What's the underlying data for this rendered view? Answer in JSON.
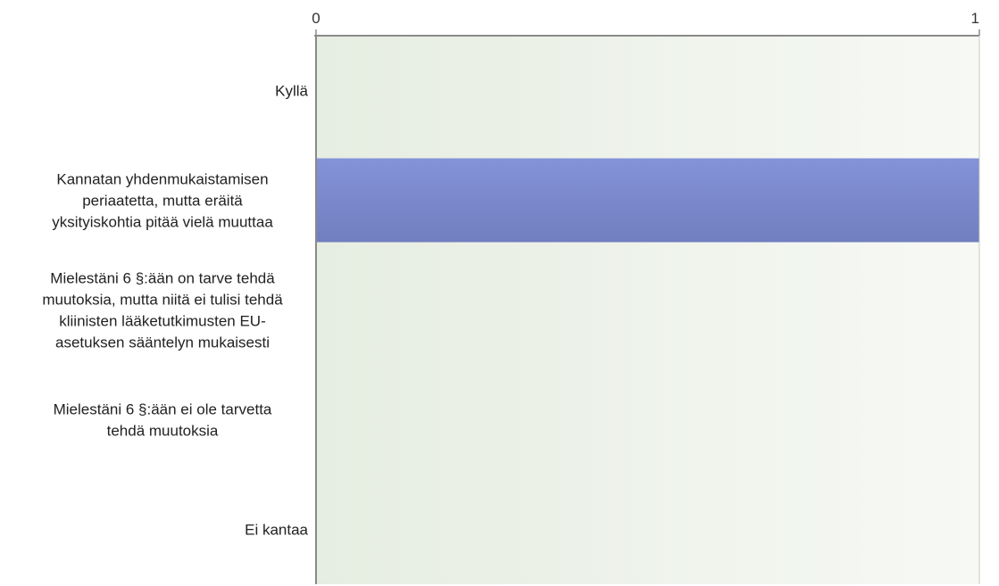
{
  "chart_data": {
    "type": "bar",
    "orientation": "horizontal",
    "categories": [
      "Kyllä",
      "Kannatan yhdenmukaistamisen periaatetta, mutta eräitä yksityiskohtia pitää vielä muuttaa",
      "Mielestäni 6 §:ään on tarve tehdä muutoksia, mutta niitä ei tulisi tehdä kliinisten lääketutkimusten EU-asetuksen sääntelyn mukaisesti",
      "Mielestäni 6 §:ään ei ole tarvetta tehdä muutoksia",
      "Ei kantaa"
    ],
    "category_lines": [
      [
        "Kyllä"
      ],
      [
        "Kannatan yhdenmukaistamisen",
        "periaatetta, mutta eräitä",
        "yksityiskohtia pitää vielä muuttaa"
      ],
      [
        "Mielestäni 6 §:ään on tarve tehdä",
        "muutoksia, mutta niitä ei tulisi tehdä",
        "kliinisten lääketutkimusten EU-",
        "asetuksen sääntelyn mukaisesti"
      ],
      [
        "Mielestäni 6 §:ään ei ole tarvetta",
        "tehdä muutoksia"
      ],
      [
        "Ei kantaa"
      ]
    ],
    "values": [
      0,
      1,
      0,
      0,
      0
    ],
    "xlim": [
      0,
      1
    ],
    "xticks": [
      "0",
      "1"
    ],
    "tick_position": "top",
    "grid": false,
    "colors": {
      "bar_top": "#8492d8",
      "bar_bottom": "#717ebf",
      "plot_bg_left": "#e6ede1",
      "plot_bg_right": "#f7f9f5",
      "axis": "#8a8a8a"
    }
  }
}
